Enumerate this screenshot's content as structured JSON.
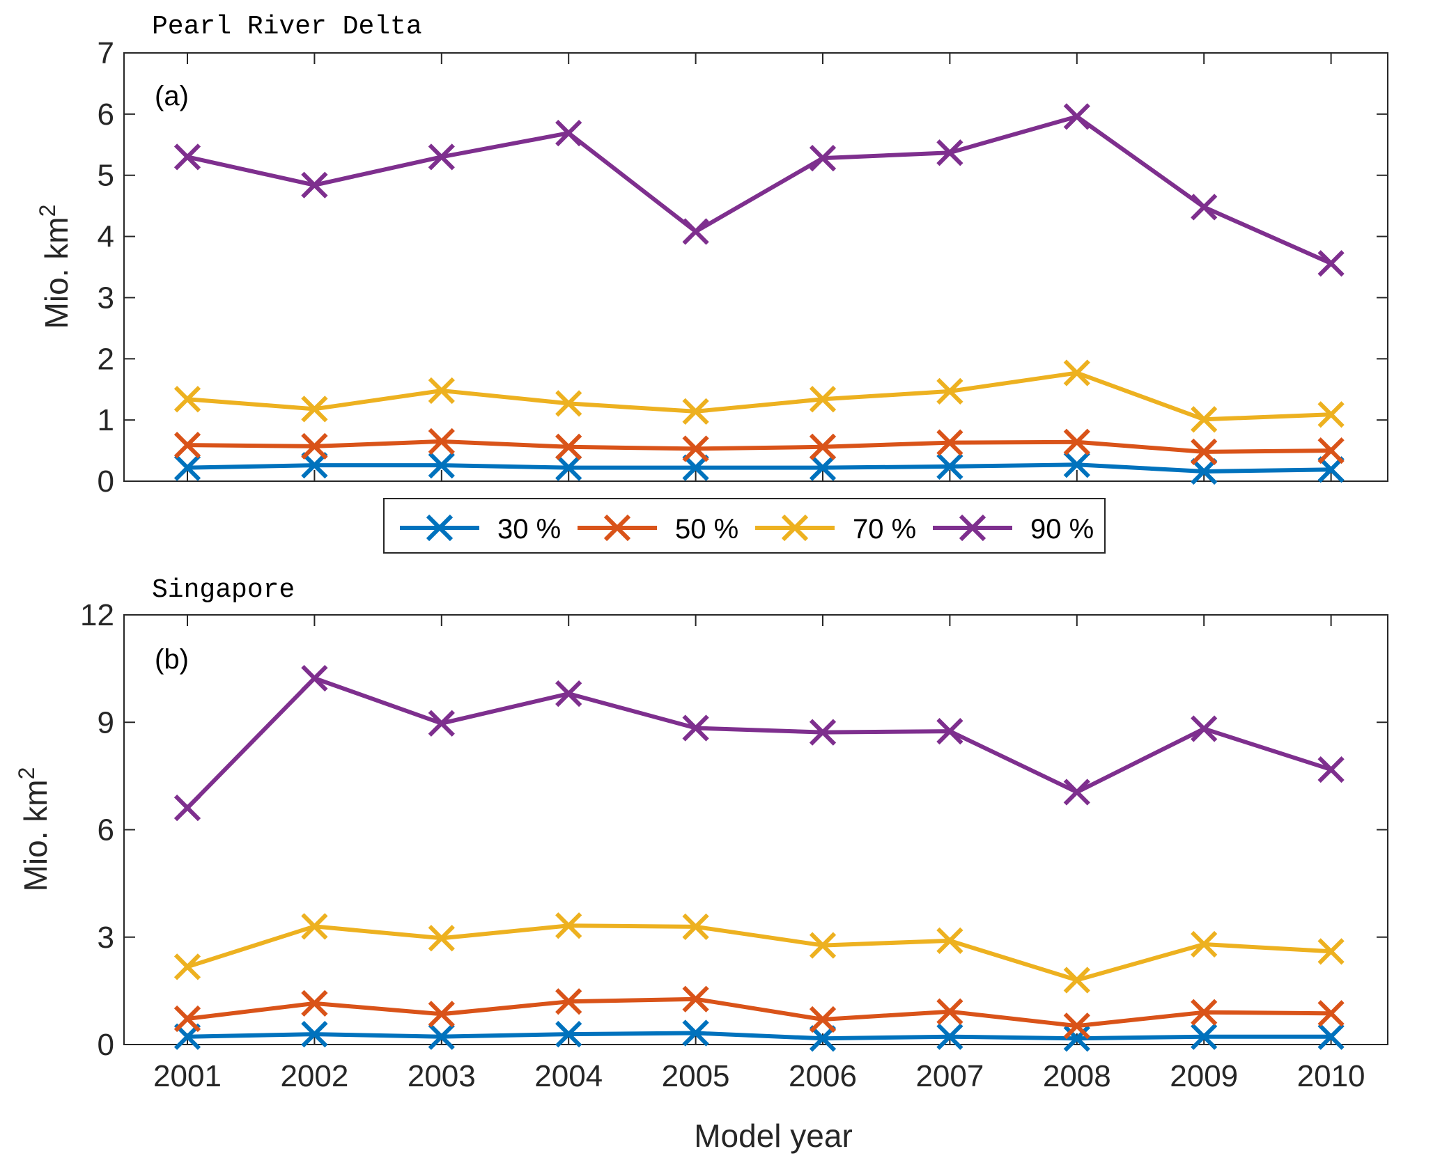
{
  "chart_data": [
    {
      "type": "line",
      "title": "Pearl River Delta",
      "panel_label": "(a)",
      "xlabel": "",
      "ylabel": "Mio. km",
      "ylabel_sup": "2",
      "x": [
        2001,
        2002,
        2003,
        2004,
        2005,
        2006,
        2007,
        2008,
        2009,
        2010
      ],
      "ylim": [
        0,
        7
      ],
      "yticks": [
        0,
        1,
        2,
        3,
        4,
        5,
        6,
        7
      ],
      "series": [
        {
          "name": "30 %",
          "color": "#0072BD",
          "values": [
            0.22,
            0.26,
            0.26,
            0.22,
            0.22,
            0.22,
            0.24,
            0.27,
            0.16,
            0.19
          ]
        },
        {
          "name": "50 %",
          "color": "#D95319",
          "values": [
            0.59,
            0.57,
            0.65,
            0.56,
            0.53,
            0.56,
            0.63,
            0.64,
            0.48,
            0.5
          ]
        },
        {
          "name": "70 %",
          "color": "#EDB120",
          "values": [
            1.34,
            1.18,
            1.48,
            1.27,
            1.14,
            1.34,
            1.47,
            1.77,
            1.01,
            1.09
          ]
        },
        {
          "name": "90 %",
          "color": "#7E2F8E",
          "values": [
            5.3,
            4.84,
            5.3,
            5.69,
            4.08,
            5.28,
            5.37,
            5.96,
            4.48,
            3.56
          ]
        }
      ]
    },
    {
      "type": "line",
      "title": "Singapore",
      "panel_label": "(b)",
      "xlabel": "Model year",
      "ylabel": "Mio. km",
      "ylabel_sup": "2",
      "x": [
        2001,
        2002,
        2003,
        2004,
        2005,
        2006,
        2007,
        2008,
        2009,
        2010
      ],
      "ylim": [
        0,
        12
      ],
      "yticks": [
        0,
        3,
        6,
        9,
        12
      ],
      "series": [
        {
          "name": "30 %",
          "color": "#0072BD",
          "values": [
            0.22,
            0.29,
            0.22,
            0.29,
            0.32,
            0.17,
            0.22,
            0.17,
            0.22,
            0.22
          ]
        },
        {
          "name": "50 %",
          "color": "#D95319",
          "values": [
            0.72,
            1.15,
            0.85,
            1.2,
            1.27,
            0.7,
            0.92,
            0.52,
            0.9,
            0.87
          ]
        },
        {
          "name": "70 %",
          "color": "#EDB120",
          "values": [
            2.17,
            3.3,
            2.97,
            3.32,
            3.29,
            2.77,
            2.9,
            1.8,
            2.8,
            2.6
          ]
        },
        {
          "name": "90 %",
          "color": "#7E2F8E",
          "values": [
            6.61,
            10.23,
            8.97,
            9.8,
            8.84,
            8.72,
            8.75,
            7.05,
            8.82,
            7.68
          ]
        }
      ]
    }
  ],
  "legend": {
    "position": "between-panels",
    "entries": [
      "30 %",
      "50 %",
      "70 %",
      "90 %"
    ]
  }
}
